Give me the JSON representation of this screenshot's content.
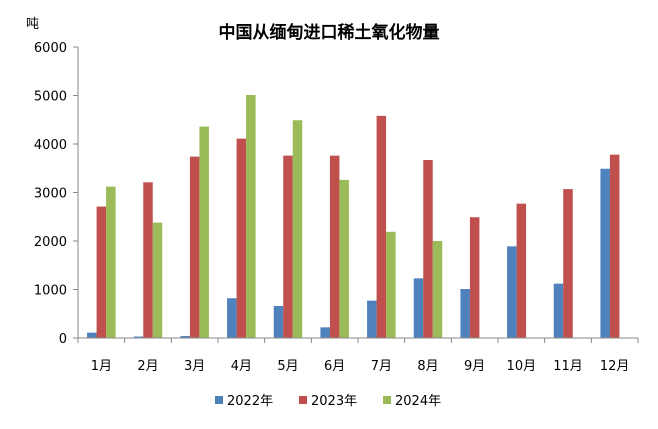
{
  "chart_data": {
    "type": "bar",
    "title": "中国从缅甸进口稀土氧化物量",
    "ylabel": "吨",
    "xlabel": "",
    "ylim": [
      0,
      6000
    ],
    "yticks": [
      0,
      1000,
      2000,
      3000,
      4000,
      5000,
      6000
    ],
    "ytick_labels": [
      "0",
      "1000",
      "2000",
      "3000",
      "4000",
      "5000",
      "6000"
    ],
    "grid": false,
    "legend_position": "bottom",
    "categories": [
      "1月",
      "2月",
      "3月",
      "4月",
      "5月",
      "6月",
      "7月",
      "8月",
      "9月",
      "10月",
      "11月",
      "12月"
    ],
    "series": [
      {
        "name": "2022年",
        "color": "#4f81bd",
        "values": [
          110,
          30,
          40,
          820,
          660,
          220,
          770,
          1230,
          1010,
          1890,
          1120,
          3490
        ]
      },
      {
        "name": "2023年",
        "color": "#c0504d",
        "values": [
          2710,
          3210,
          3740,
          4110,
          3760,
          3760,
          4580,
          3670,
          2490,
          2770,
          3070,
          3780
        ]
      },
      {
        "name": "2024年",
        "color": "#9bbb59",
        "values": [
          3120,
          2380,
          4360,
          5010,
          4490,
          3260,
          2190,
          2000,
          null,
          null,
          null,
          null
        ]
      }
    ]
  }
}
